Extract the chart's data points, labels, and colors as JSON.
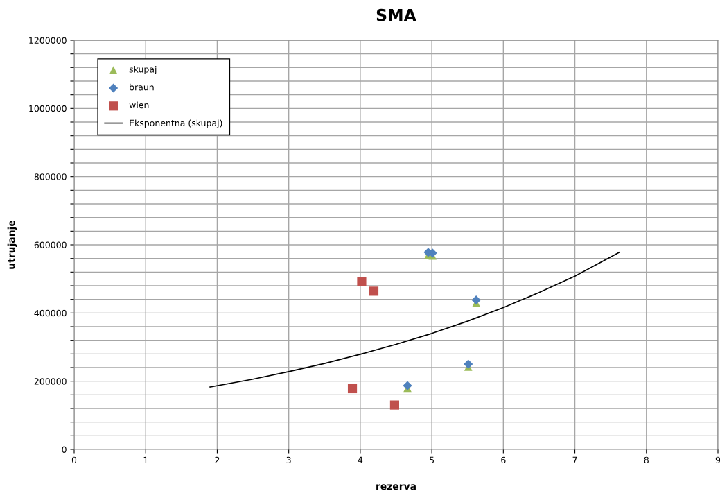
{
  "chart_data": {
    "type": "scatter",
    "title": "SMA",
    "xlabel": "rezerva",
    "ylabel": "utrujanje",
    "xlim": [
      0,
      9
    ],
    "xticks": [
      0,
      1,
      2,
      3,
      4,
      5,
      6,
      7,
      8,
      9
    ],
    "ylim": [
      0,
      1200000
    ],
    "yticks": [
      0,
      {
        "value": 40000,
        "label": null
      },
      {
        "value": 80000,
        "label": null
      },
      {
        "value": 120000,
        "label": null
      },
      {
        "value": 160000,
        "label": null
      },
      200000,
      {
        "value": 240000,
        "label": null
      },
      {
        "value": 280000,
        "label": null
      },
      {
        "value": 320000,
        "label": null
      },
      {
        "value": 360000,
        "label": null
      },
      400000,
      {
        "value": 440000,
        "label": null
      },
      {
        "value": 480000,
        "label": null
      },
      {
        "value": 520000,
        "label": null
      },
      {
        "value": 560000,
        "label": null
      },
      600000,
      {
        "value": 640000,
        "label": null
      },
      {
        "value": 680000,
        "label": null
      },
      {
        "value": 720000,
        "label": null
      },
      {
        "value": 760000,
        "label": null
      },
      800000,
      {
        "value": 840000,
        "label": null
      },
      {
        "value": 880000,
        "label": null
      },
      {
        "value": 920000,
        "label": null
      },
      {
        "value": 960000,
        "label": null
      },
      1000000,
      {
        "value": 1040000,
        "label": null
      },
      {
        "value": 1080000,
        "label": null
      },
      {
        "value": 1120000,
        "label": null
      },
      {
        "value": 1160000,
        "label": null
      },
      1200000
    ],
    "grid": true,
    "legend": "top left",
    "series": [
      {
        "name": "skupaj",
        "color": "#9bbb59",
        "marker": "triangle",
        "x": [
          4.95,
          5.01,
          5.62,
          5.51,
          4.66
        ],
        "values": [
          570000,
          568000,
          430000,
          242000,
          180000
        ]
      },
      {
        "name": "braun",
        "color": "#4f81bd",
        "marker": "diamond",
        "x": [
          4.95,
          5.01,
          5.62,
          5.51,
          4.66
        ],
        "values": [
          578000,
          576000,
          438000,
          250000,
          187000
        ]
      },
      {
        "name": "wien",
        "color": "#c0504d",
        "marker": "square",
        "x": [
          4.02,
          4.19,
          3.89,
          4.48
        ],
        "values": [
          493000,
          464000,
          178000,
          130000
        ]
      },
      {
        "name": "Eksponentna (skupaj)",
        "type": "line",
        "color": "#000000",
        "marker": "none",
        "line_style": "solid",
        "x": [
          1.9,
          2.5,
          3,
          3.5,
          4,
          4.5,
          5,
          5.5,
          6,
          6.5,
          7,
          7.62
        ],
        "values": [
          183000,
          206000,
          228000,
          252000,
          279000,
          308000,
          340000,
          376000,
          416000,
          460000,
          508000,
          578000
        ]
      }
    ]
  }
}
